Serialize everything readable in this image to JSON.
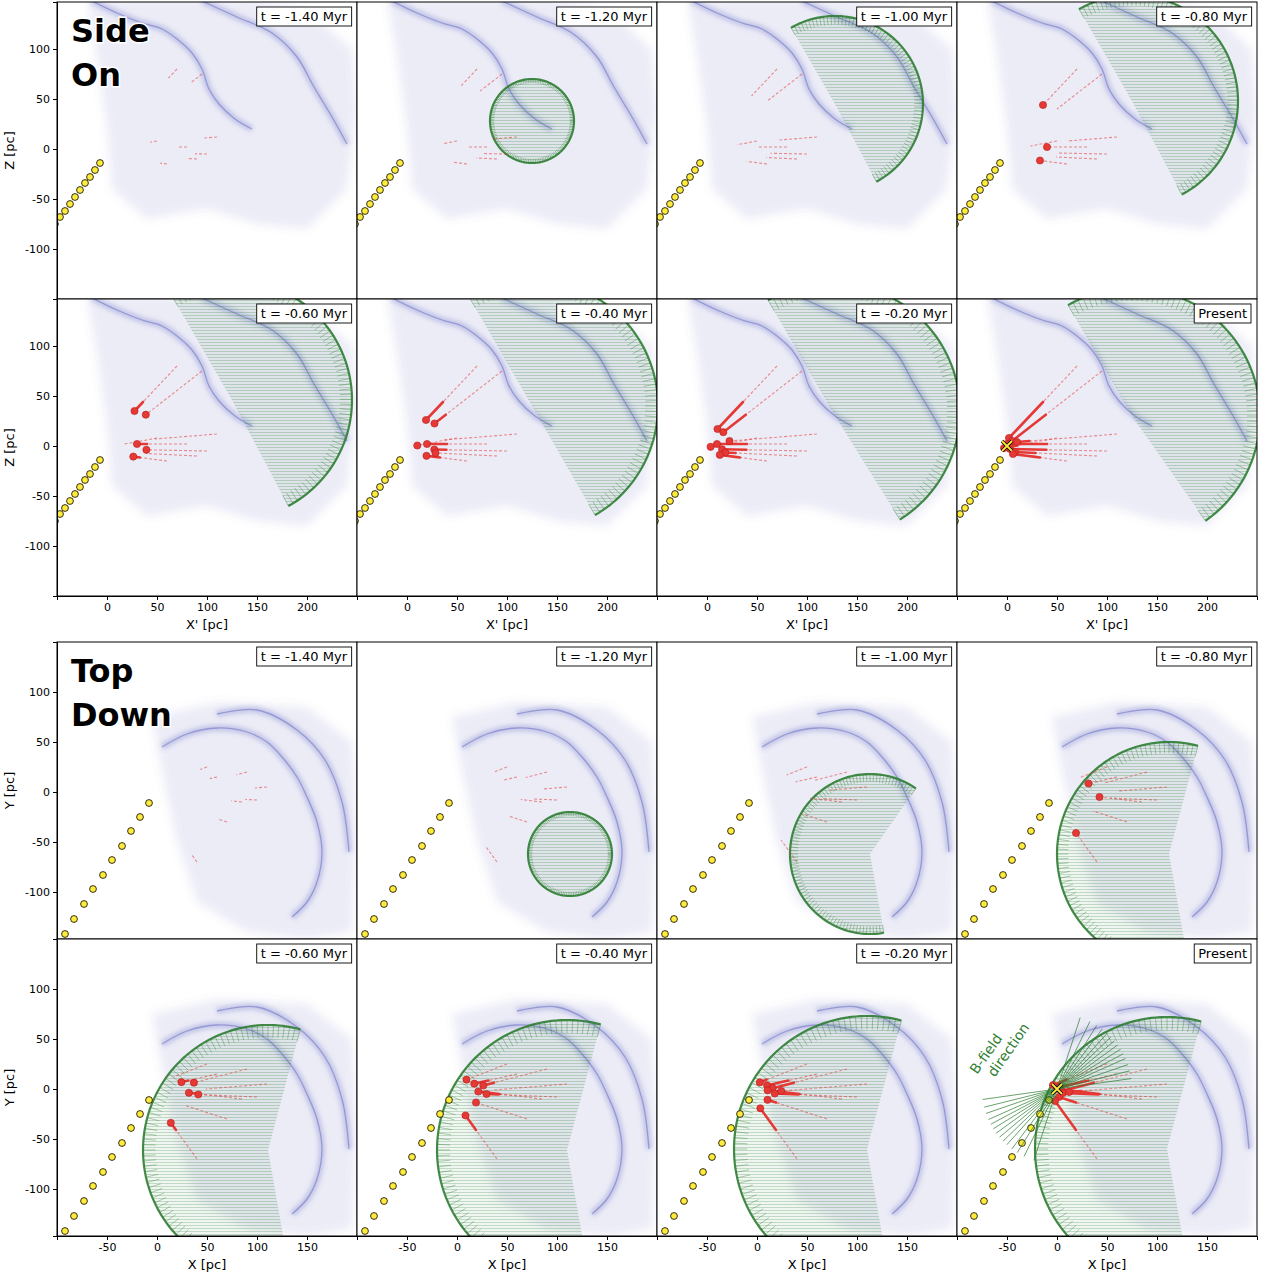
{
  "chart_data": [
    {
      "type": "scatter",
      "title": "Side On",
      "x_label": "X' [pc]",
      "y_label": "Z [pc]",
      "xlim": [
        -50,
        250
      ],
      "ylim": [
        -150,
        147
      ],
      "xticks": [
        0,
        50,
        100,
        150,
        200
      ],
      "yticks": [
        -100,
        -50,
        0,
        50,
        100
      ],
      "panels": [
        {
          "title": "t = -1.40 Myr",
          "time": -1.4,
          "shell": null
        },
        {
          "title": "t = -1.20 Myr",
          "time": -1.2,
          "shell": {
            "cx": 125,
            "cy": 28,
            "r": 42,
            "arc": [
              0,
              360
            ]
          }
        },
        {
          "title": "t = -1.00 Myr",
          "time": -1.0,
          "shell": {
            "cx": 128,
            "cy": 45,
            "r": 88,
            "arc": [
              -62,
              120
            ]
          }
        },
        {
          "title": "t = -0.80 Myr",
          "time": -0.8,
          "shell": {
            "cx": 125,
            "cy": 48,
            "r": 106,
            "arc": [
              -62,
              120
            ]
          }
        },
        {
          "title": "t = -0.60 Myr",
          "time": -0.6,
          "shell": {
            "cx": 125,
            "cy": 46,
            "r": 120,
            "arc": [
              -62,
              120
            ]
          }
        },
        {
          "title": "t = -0.40 Myr",
          "time": -0.4,
          "shell": {
            "cx": 125,
            "cy": 40,
            "r": 126,
            "arc": [
              -60,
              120
            ]
          }
        },
        {
          "title": "t = -0.20 Myr",
          "time": -0.2,
          "shell": {
            "cx": 125,
            "cy": 35,
            "r": 128,
            "arc": [
              -58,
              120
            ]
          }
        },
        {
          "title": "Present",
          "time": 0,
          "shell": {
            "cx": 125,
            "cy": 30,
            "r": 128,
            "arc": [
              -55,
              120
            ]
          }
        }
      ],
      "shell": {
        "color": "#2e7d32"
      },
      "cloud": {
        "color": "#6a6fc4",
        "region": {
          "x": [
            -20,
            60,
            140,
            200,
            245,
            250,
            240,
            200,
            150,
            100,
            40,
            5,
            0,
            -10
          ],
          "y": [
            150,
            150,
            150,
            140,
            100,
            40,
            -40,
            -80,
            -75,
            -60,
            -70,
            -40,
            20,
            90
          ]
        },
        "ridges": [
          {
            "x": [
              -15,
              10,
              35,
              55,
              70,
              85,
              95,
              102,
              112,
              128,
              145
            ],
            "y": [
              148,
              136,
              126,
              120,
              110,
              96,
              80,
              60,
              45,
              30,
              20
            ]
          },
          {
            "x": [
              95,
              130,
              165,
              190,
              207,
              225,
              240
            ],
            "y": [
              148,
              132,
              116,
              92,
              62,
              32,
              5
            ]
          }
        ]
      },
      "stars": {
        "color": "#e53935",
        "marker": "circle",
        "line_style": "dashed",
        "tracks": [
          {
            "x": [
              70,
              61.5,
              53,
              44.5,
              36,
              27.5,
              19,
              10.5,
              2
            ],
            "y": [
              80,
              71,
              62,
              53,
              44,
              35,
              26,
              17,
              8
            ],
            "born": -0.8
          },
          {
            "x": [
              95,
              83.8,
              72.5,
              61.3,
              50,
              38.8,
              27.5,
              16.3,
              5
            ],
            "y": [
              75,
              66.3,
              57.5,
              48.8,
              40,
              31.3,
              22.5,
              13.8,
              5
            ],
            "born": -0.6
          },
          {
            "x": [
              80,
              70,
              60,
              50,
              40,
              30,
              20,
              10,
              0
            ],
            "y": [
              2,
              2,
              2,
              2,
              2,
              2,
              2,
              2,
              2
            ],
            "born": -0.8
          },
          {
            "x": [
              100,
              87.9,
              75.8,
              63.6,
              51.5,
              39.4,
              27.3,
              15.1,
              3
            ],
            "y": [
              -5,
              -4.8,
              -4.5,
              -4.3,
              -4,
              -3.8,
              -3.5,
              -3.3,
              -3
            ],
            "born": -0.6
          },
          {
            "x": [
              90,
              79.8,
              69.5,
              59.3,
              49,
              38.8,
              28.5,
              18.3,
              8
            ],
            "y": [
              -10,
              -9.5,
              -9,
              -8.5,
              -8,
              -7.5,
              -7,
              -6.5,
              -6
            ],
            "born": -0.4
          },
          {
            "x": [
              60,
              53.3,
              46.5,
              39.8,
              33,
              26.3,
              19.5,
              12.8,
              6
            ],
            "y": [
              -15,
              -14.1,
              -13.3,
              -12.4,
              -11.5,
              -10.6,
              -9.8,
              -8.9,
              -8
            ],
            "born": -0.8
          },
          {
            "x": [
              110,
              97.5,
              85,
              72.5,
              60,
              47.5,
              35,
              22.5,
              10
            ],
            "y": [
              12,
              11,
              10,
              9,
              8,
              7,
              6,
              5,
              4
            ],
            "born": -0.2
          },
          {
            "x": [
              50,
              43.4,
              36.8,
              30.1,
              23.5,
              16.9,
              10.3,
              3.6,
              -3
            ],
            "y": [
              8,
              6.8,
              5.5,
              4.3,
              3,
              1.8,
              0.5,
              -0.8,
              -2
            ],
            "born": -0.4
          }
        ]
      },
      "sun": {
        "color": "#ffeb3b",
        "marker": "circle",
        "x": [
          -52,
          -47,
          -42,
          -37,
          -32,
          -27,
          -22,
          -17,
          -12,
          -7
        ],
        "y": [
          -75,
          -68,
          -62,
          -55,
          -48,
          -41,
          -34,
          -28,
          -21,
          -14
        ],
        "present": {
          "x": 0,
          "y": 0,
          "marker": "x"
        }
      }
    },
    {
      "type": "scatter",
      "title": "Top Down",
      "x_label": "X [pc]",
      "y_label": "Y [pc]",
      "xlim": [
        -100,
        200
      ],
      "ylim": [
        -147,
        150
      ],
      "xticks": [
        -50,
        0,
        50,
        100,
        150
      ],
      "yticks": [
        -100,
        -50,
        0,
        50,
        100
      ],
      "panels": [
        {
          "title": "t = -1.40 Myr",
          "time": -1.4,
          "shell": null
        },
        {
          "title": "t = -1.20 Myr",
          "time": -1.2,
          "shell": {
            "cx": 113,
            "cy": -62,
            "r": 42,
            "arc": [
              0,
              360
            ]
          }
        },
        {
          "title": "t = -1.00 Myr",
          "time": -1.0,
          "shell": {
            "cx": 113,
            "cy": -62,
            "r": 80,
            "arc": [
              55,
              280
            ]
          }
        },
        {
          "title": "t = -0.80 Myr",
          "time": -0.8,
          "shell": {
            "cx": 112,
            "cy": -62,
            "r": 112,
            "arc": [
              75,
              280
            ]
          }
        },
        {
          "title": "t = -0.60 Myr",
          "time": -0.6,
          "shell": {
            "cx": 111,
            "cy": -61,
            "r": 125,
            "arc": [
              75,
              280
            ]
          }
        },
        {
          "title": "t = -0.40 Myr",
          "time": -0.4,
          "shell": {
            "cx": 110,
            "cy": -61,
            "r": 130,
            "arc": [
              75,
              280
            ]
          }
        },
        {
          "title": "t = -0.20 Myr",
          "time": -0.2,
          "shell": {
            "cx": 110,
            "cy": -60,
            "r": 133,
            "arc": [
              75,
              280
            ]
          }
        },
        {
          "title": "Present",
          "time": 0,
          "shell": {
            "cx": 110,
            "cy": -60,
            "r": 132,
            "arc": [
              75,
              280
            ]
          }
        }
      ],
      "shell": {
        "color": "#2e7d32"
      },
      "cloud": {
        "color": "#6a6fc4",
        "region": {
          "x": [
            -5,
            60,
            150,
            195,
            200,
            195,
            150,
            90,
            40,
            20,
            5
          ],
          "y": [
            75,
            90,
            85,
            50,
            -30,
            -140,
            -147,
            -140,
            -110,
            -50,
            20
          ]
        },
        "ridges": [
          {
            "x": [
              5,
              30,
              60,
              90,
              110,
              125,
              140,
              150,
              160,
              165,
              160,
              150,
              135
            ],
            "y": [
              45,
              58,
              64,
              60,
              50,
              35,
              15,
              -5,
              -30,
              -60,
              -90,
              -110,
              -125
            ]
          },
          {
            "x": [
              60,
              100,
              140,
              168,
              185,
              192
            ],
            "y": [
              78,
              82,
              62,
              32,
              -10,
              -60
            ]
          }
        ]
      },
      "stars": {
        "color": "#e53935",
        "marker": "circle",
        "line_style": "dashed",
        "tracks": [
          {
            "x": [
              60,
              52.9,
              45.8,
              38.6,
              31.5,
              24.4,
              17.3,
              10.1,
              3
            ],
            "y": [
              15,
              13.4,
              11.8,
              10.1,
              8.5,
              6.9,
              5.3,
              3.6,
              2
            ],
            "born": -0.8
          },
          {
            "x": [
              90,
              79.4,
              68.8,
              58.1,
              47.5,
              36.9,
              26.3,
              15.6,
              5
            ],
            "y": [
              20,
              17.3,
              14.5,
              11.8,
              9,
              6.3,
              3.5,
              0.8,
              -2
            ],
            "born": -0.6
          },
          {
            "x": [
              85,
              74.4,
              63.8,
              53.1,
              42.5,
              31.9,
              21.3,
              10.6,
              0
            ],
            "y": [
              -10,
              -8.8,
              -7.5,
              -6.3,
              -5,
              -3.8,
              -2.5,
              -1.3,
              0
            ],
            "born": -0.8
          },
          {
            "x": [
              100,
              88.3,
              76.5,
              64.8,
              53,
              41.3,
              29.5,
              17.8,
              6
            ],
            "y": [
              -8,
              -7.5,
              -7,
              -6.5,
              -6,
              -5.5,
              -5,
              -4.5,
              -4
            ],
            "born": -0.6
          },
          {
            "x": [
              70,
              61.5,
              53,
              44.5,
              36,
              27.5,
              19,
              10.5,
              2
            ],
            "y": [
              -30,
              -27.3,
              -24.5,
              -21.8,
              -19,
              -16.3,
              -13.5,
              -10.8,
              -8
            ],
            "born": -0.4
          },
          {
            "x": [
              40,
              34.8,
              29.5,
              24.3,
              19,
              13.8,
              8.5,
              3.3,
              -2
            ],
            "y": [
              -70,
              -62.8,
              -55.5,
              -48.3,
              -41,
              -33.8,
              -26.5,
              -19.3,
              -12
            ],
            "born": -0.8
          },
          {
            "x": [
              110,
              97.8,
              85.5,
              73.3,
              61,
              48.8,
              36.5,
              24.3,
              12
            ],
            "y": [
              5,
              4,
              3,
              2,
              1,
              0,
              -1,
              -2,
              -3
            ],
            "born": -0.2
          },
          {
            "x": [
              50,
              43.3,
              36.5,
              29.8,
              23,
              16.3,
              9.5,
              2.8,
              -4
            ],
            "y": [
              25,
              22.4,
              19.8,
              17.1,
              14.5,
              11.9,
              9.3,
              6.6,
              4
            ],
            "born": -0.4
          }
        ]
      },
      "sun": {
        "color": "#ffeb3b",
        "marker": "circle",
        "x": [
          -92,
          -83,
          -73,
          -64,
          -54,
          -45,
          -35,
          -26,
          -17,
          -8
        ],
        "y": [
          -142,
          -127,
          -112,
          -97,
          -83,
          -68,
          -54,
          -39,
          -25,
          -11
        ],
        "present": {
          "x": 0,
          "y": 0,
          "marker": "x"
        }
      },
      "bfield": {
        "label": "B-field direction",
        "color": "#2e7d32",
        "angles": [
          8,
          14,
          19,
          24,
          28,
          32,
          36,
          40,
          44,
          48,
          53,
          58,
          64,
          72
        ]
      }
    }
  ]
}
